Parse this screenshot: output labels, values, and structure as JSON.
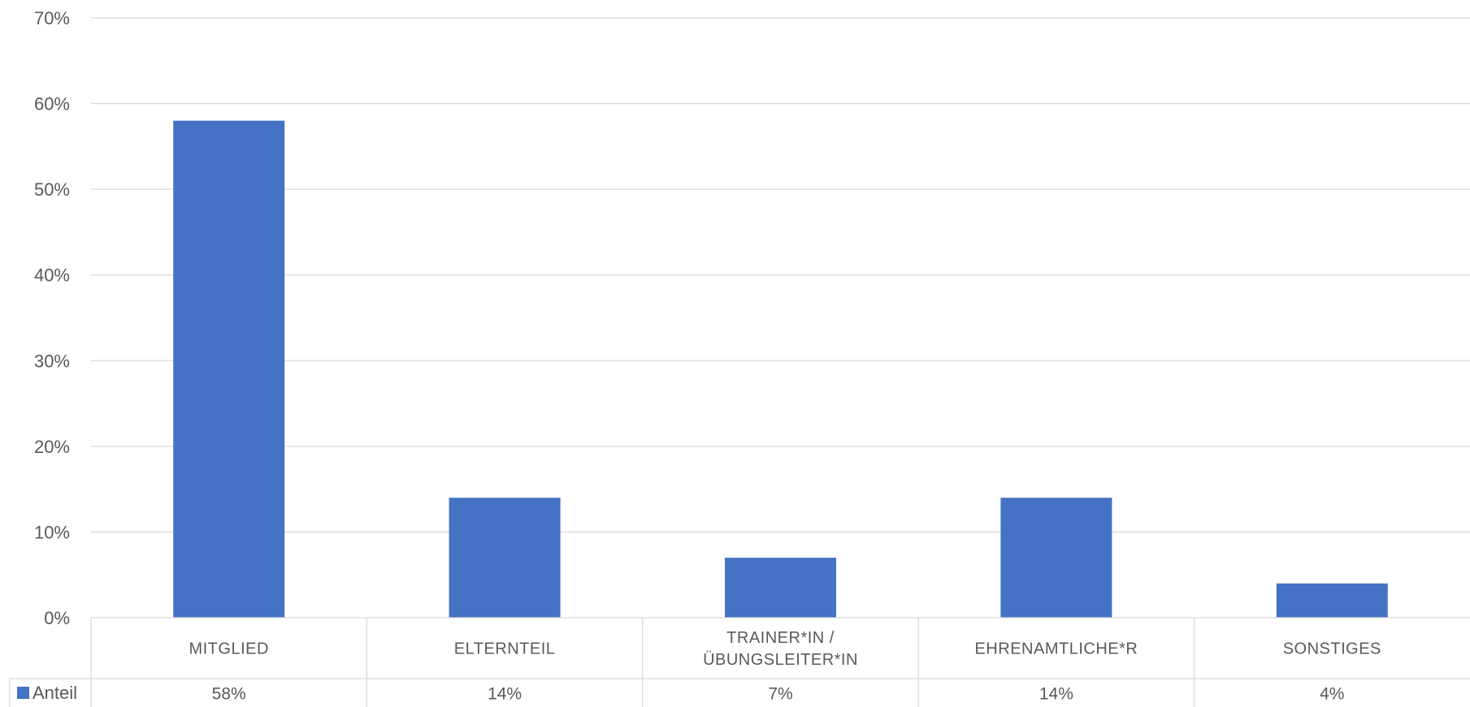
{
  "chart_data": {
    "type": "bar",
    "categories": [
      "MITGLIED",
      "ELTERNTEIL",
      "TRAINER*IN / ÜBUNGSLEITER*IN",
      "EHRENAMTLICHE*R",
      "SONSTIGES"
    ],
    "category_lines": [
      [
        "MITGLIED"
      ],
      [
        "ELTERNTEIL"
      ],
      [
        "TRAINER*IN /",
        "ÜBUNGSLEITER*IN"
      ],
      [
        "EHRENAMTLICHE*R"
      ],
      [
        "SONSTIGES"
      ]
    ],
    "series": [
      {
        "name": "Anteil",
        "values": [
          58,
          14,
          7,
          14,
          4
        ],
        "labels": [
          "58%",
          "14%",
          "7%",
          "14%",
          "4%"
        ],
        "color": "#4472C4"
      }
    ],
    "ylim": [
      0,
      70
    ],
    "y_ticks": [
      "0%",
      "10%",
      "20%",
      "30%",
      "40%",
      "50%",
      "60%",
      "70%"
    ],
    "grid": true,
    "legend": "data-table-left",
    "gridline_color": "#d9d9d9"
  }
}
